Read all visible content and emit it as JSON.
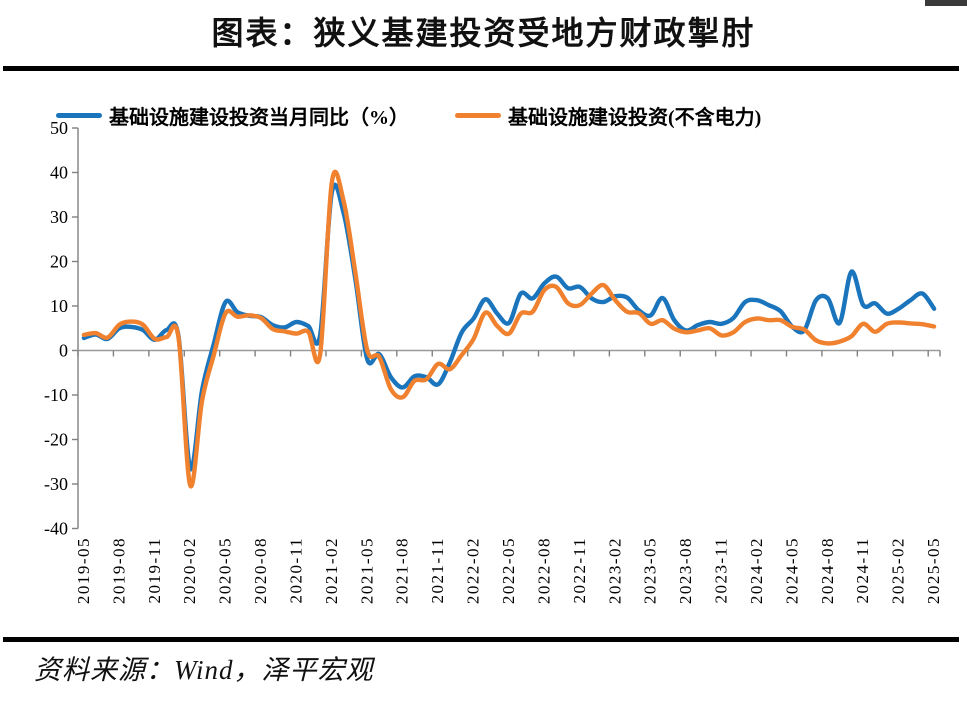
{
  "header": {
    "title": "图表：狭义基建投资受地方财政掣肘"
  },
  "legend": {
    "items": [
      {
        "label": "基础设施建设投资当月同比（%）",
        "color": "#1B75BC"
      },
      {
        "label": "基础设施建设投资(不含电力)",
        "color": "#F0812F"
      }
    ]
  },
  "footer": {
    "source": "资料来源：Wind，泽平宏观"
  },
  "chart_data": {
    "type": "line",
    "title": "图表：狭义基建投资受地方财政掣肘",
    "xlabel": "",
    "ylabel": "",
    "ylim": [
      -40,
      50
    ],
    "ytick_step": 10,
    "yticks": [
      50,
      40,
      30,
      20,
      10,
      0,
      -10,
      -20,
      -30,
      -40
    ],
    "grid": false,
    "legend_position": "top",
    "x": [
      "2019-05",
      "2019-06",
      "2019-07",
      "2019-08",
      "2019-09",
      "2019-10",
      "2019-11",
      "2019-12",
      "2020-01",
      "2020-02",
      "2020-03",
      "2020-04",
      "2020-05",
      "2020-06",
      "2020-07",
      "2020-08",
      "2020-09",
      "2020-10",
      "2020-11",
      "2020-12",
      "2021-01",
      "2021-02",
      "2021-03",
      "2021-04",
      "2021-05",
      "2021-06",
      "2021-07",
      "2021-08",
      "2021-09",
      "2021-10",
      "2021-11",
      "2021-12",
      "2022-01",
      "2022-02",
      "2022-03",
      "2022-04",
      "2022-05",
      "2022-06",
      "2022-07",
      "2022-08",
      "2022-09",
      "2022-10",
      "2022-11",
      "2022-12",
      "2023-01",
      "2023-02",
      "2023-03",
      "2023-04",
      "2023-05",
      "2023-06",
      "2023-07",
      "2023-08",
      "2023-09",
      "2023-10",
      "2023-11",
      "2023-12",
      "2024-01",
      "2024-02",
      "2024-03",
      "2024-04",
      "2024-05",
      "2024-06",
      "2024-07",
      "2024-08",
      "2024-09",
      "2024-10",
      "2024-11",
      "2024-12",
      "2025-01",
      "2025-02",
      "2025-03",
      "2025-04",
      "2025-05"
    ],
    "x_tick_labels": [
      "2019-05",
      "2019-08",
      "2019-11",
      "2020-02",
      "2020-05",
      "2020-08",
      "2020-11",
      "2021-02",
      "2021-05",
      "2021-08",
      "2021-11",
      "2022-02",
      "2022-05",
      "2022-08",
      "2022-11",
      "2023-02",
      "2023-05",
      "2023-08",
      "2023-11",
      "2024-02",
      "2024-05",
      "2024-08",
      "2024-11",
      "2025-02",
      "2025-05"
    ],
    "series": [
      {
        "name": "基础设施建设投资当月同比（%）",
        "color": "#1B75BC",
        "values": [
          2.8,
          3.6,
          2.6,
          5.0,
          5.3,
          4.6,
          2.4,
          4.6,
          3.4,
          -26.5,
          -9.0,
          1.5,
          10.9,
          8.6,
          7.8,
          7.5,
          5.7,
          5.2,
          6.4,
          5.5,
          3.4,
          35.6,
          30.8,
          15.8,
          -2.0,
          -0.8,
          -6.0,
          -8.3,
          -5.8,
          -6.0,
          -7.6,
          -2.6,
          4.1,
          7.2,
          11.5,
          8.3,
          6.2,
          12.8,
          11.7,
          15.1,
          16.6,
          14.0,
          14.3,
          11.7,
          10.9,
          12.2,
          11.9,
          9.0,
          7.9,
          11.8,
          6.8,
          4.5,
          5.7,
          6.4,
          6.0,
          7.3,
          10.9,
          11.3,
          10.2,
          8.8,
          5.3,
          4.5,
          11.3,
          11.7,
          6.2,
          17.7,
          10.2,
          10.6,
          8.3,
          9.4,
          11.3,
          12.8,
          9.4
        ]
      },
      {
        "name": "基础设施建设投资(不含电力)",
        "color": "#F0812F",
        "values": [
          3.5,
          3.9,
          2.9,
          5.8,
          6.5,
          5.8,
          2.6,
          3.0,
          3.1,
          -30.3,
          -11.3,
          -1.0,
          8.4,
          7.6,
          7.9,
          7.3,
          4.8,
          4.3,
          3.8,
          4.2,
          -0.9,
          37.9,
          33.5,
          17.3,
          0.0,
          -1.4,
          -8.7,
          -10.5,
          -6.8,
          -6.5,
          -3.0,
          -4.2,
          -1.0,
          2.6,
          8.5,
          5.5,
          3.8,
          8.3,
          8.7,
          13.6,
          14.3,
          10.6,
          10.2,
          12.8,
          14.7,
          11.3,
          8.7,
          8.4,
          6.0,
          6.8,
          4.9,
          4.1,
          4.5,
          5.0,
          3.4,
          4.1,
          6.4,
          7.2,
          6.8,
          6.8,
          5.3,
          4.7,
          2.3,
          1.6,
          2.0,
          3.2,
          6.0,
          4.2,
          6.0,
          6.3,
          6.1,
          5.9,
          5.4
        ]
      }
    ]
  }
}
